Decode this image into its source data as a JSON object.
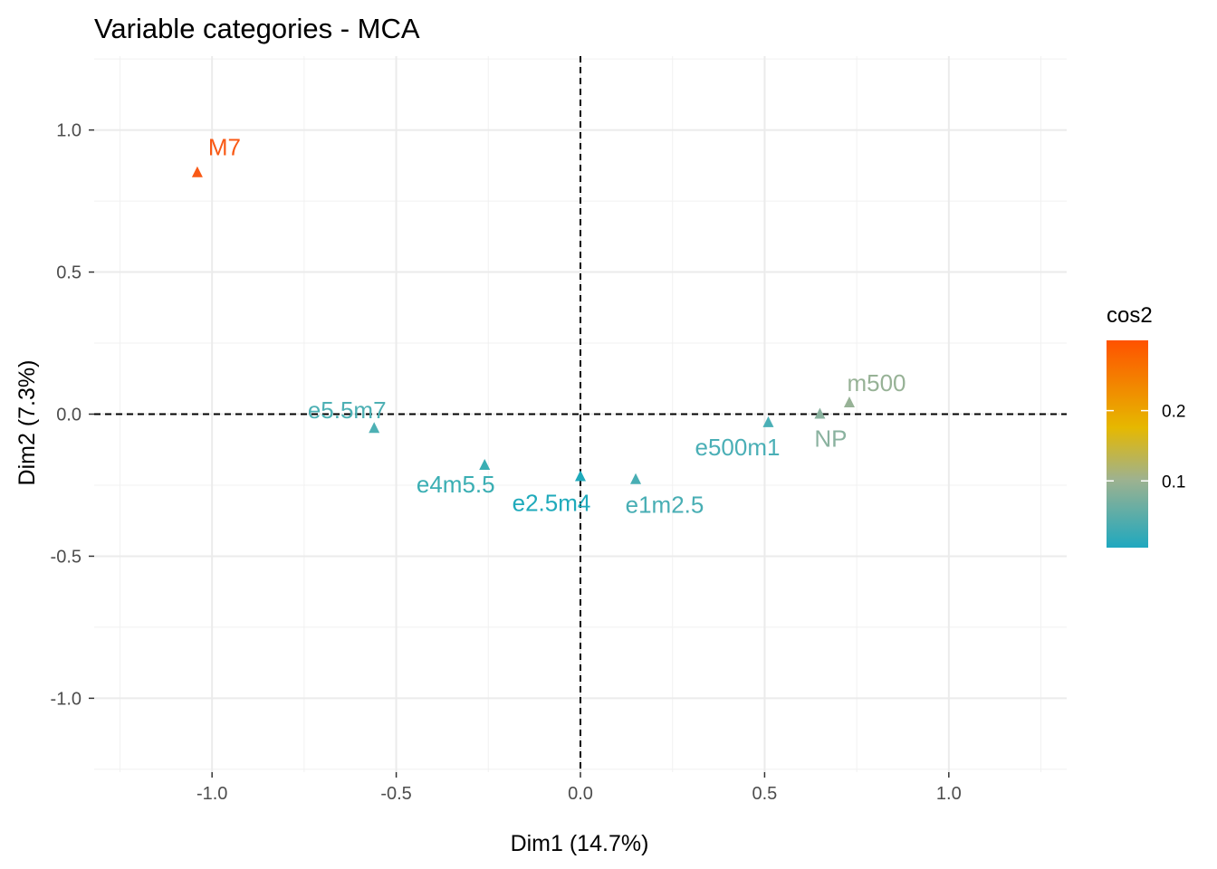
{
  "chart_data": {
    "type": "scatter",
    "title": "Variable categories - MCA",
    "xlabel": "Dim1 (14.7%)",
    "ylabel": "Dim2 (7.3%)",
    "xlim": [
      -1.32,
      1.32
    ],
    "ylim": [
      -1.26,
      1.26
    ],
    "x_ticks": [
      -1.0,
      -0.5,
      0.0,
      0.5,
      1.0
    ],
    "x_tick_labels": [
      "-1.0",
      "-0.5",
      "0.0",
      "0.5",
      "1.0"
    ],
    "y_ticks": [
      1.0,
      0.5,
      0.0,
      -0.5,
      -1.0
    ],
    "y_tick_labels": [
      "1.0",
      "0.5",
      "0.0",
      "-0.5",
      "-1.0"
    ],
    "grid": true,
    "reference_lines": {
      "x": 0,
      "y": 0,
      "style": "dashed"
    },
    "marker": "triangle",
    "points": [
      {
        "label": "M7",
        "x": -1.04,
        "y": 0.85,
        "cos2": 0.3,
        "color": "#F95915"
      },
      {
        "label": "e5.5m7",
        "x": -0.56,
        "y": -0.05,
        "cos2": 0.05,
        "color": "#4DB0B4"
      },
      {
        "label": "e4m5.5",
        "x": -0.26,
        "y": -0.18,
        "cos2": 0.04,
        "color": "#3AAEB3"
      },
      {
        "label": "e2.5m4",
        "x": 0.0,
        "y": -0.22,
        "cos2": 0.01,
        "color": "#1FAABB"
      },
      {
        "label": "e1m2.5",
        "x": 0.15,
        "y": -0.23,
        "cos2": 0.04,
        "color": "#48AEB4"
      },
      {
        "label": "e500m1",
        "x": 0.51,
        "y": -0.03,
        "cos2": 0.05,
        "color": "#4AAFB6"
      },
      {
        "label": "NP",
        "x": 0.65,
        "y": 0.0,
        "cos2": 0.08,
        "color": "#8AB29F"
      },
      {
        "label": "m500",
        "x": 0.73,
        "y": 0.04,
        "cos2": 0.09,
        "color": "#97B296"
      }
    ],
    "legend": {
      "title": "cos2",
      "position": "right",
      "type": "gradient",
      "min": 0.005,
      "max": 0.3,
      "ticks": [
        0.1,
        0.2
      ],
      "tick_labels": [
        "0.1",
        "0.2"
      ],
      "colors": [
        "#1FA8BF",
        "#E6B800",
        "#FF5200"
      ]
    }
  }
}
